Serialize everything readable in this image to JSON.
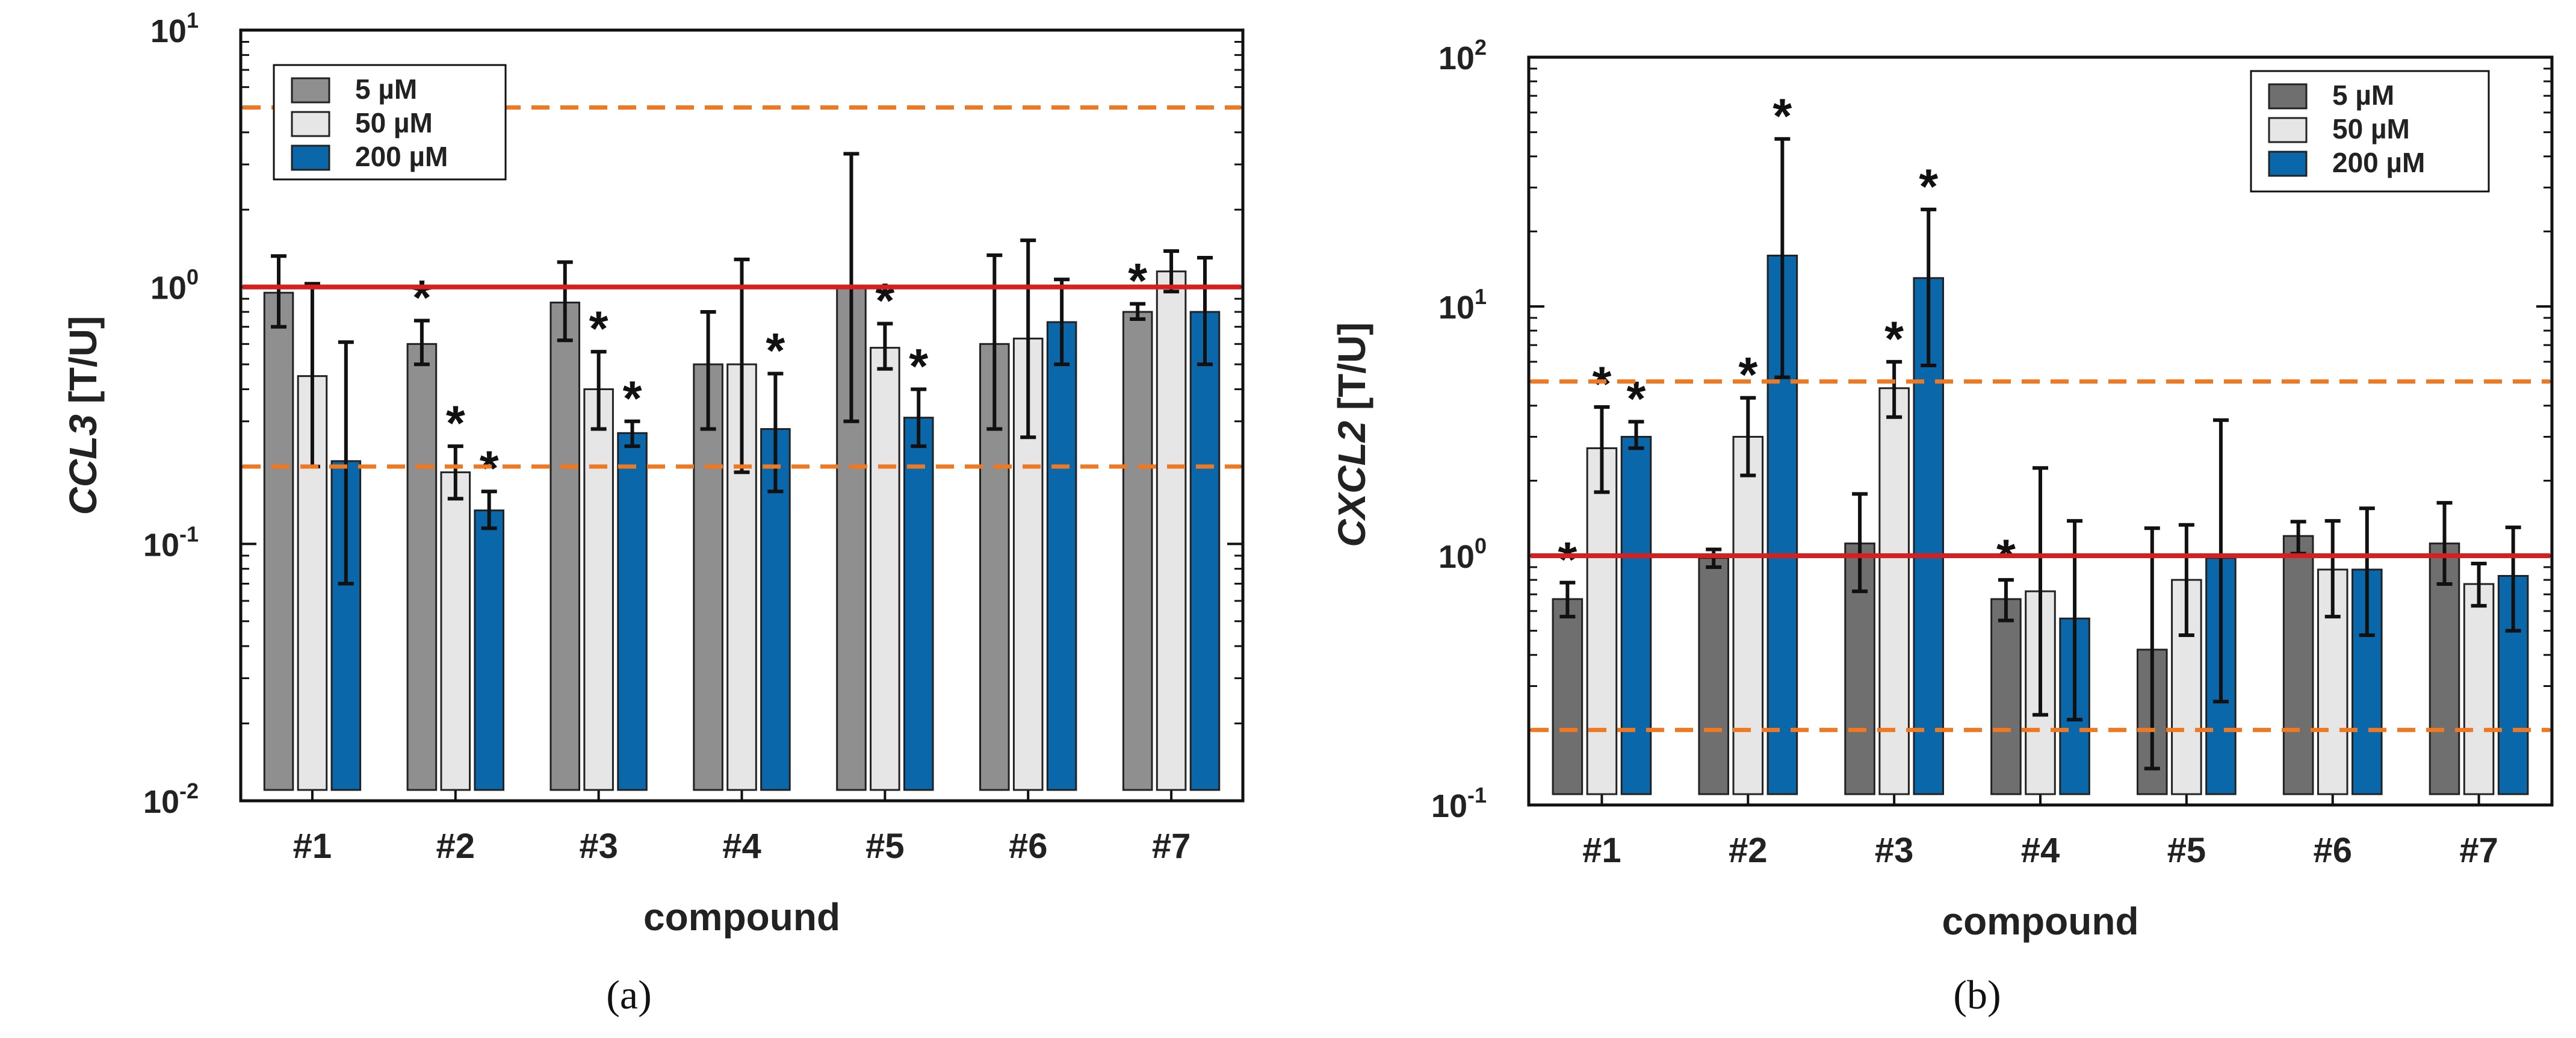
{
  "chart_data": [
    {
      "type": "bar",
      "panel_label": "(a)",
      "panel_letter": "a",
      "ylabel_gene": "CCL3",
      "ylabel_unit": "[T/U]",
      "xlabel": "compound",
      "yscale": "log",
      "ylim": [
        0.01,
        10
      ],
      "yticks": [
        {
          "value": 0.01,
          "base": "10",
          "exp": "-2"
        },
        {
          "value": 0.1,
          "base": "10",
          "exp": "-1"
        },
        {
          "value": 1,
          "base": "10",
          "exp": "0"
        },
        {
          "value": 10,
          "base": "10",
          "exp": "1"
        }
      ],
      "categories": [
        "#1",
        "#2",
        "#3",
        "#4",
        "#5",
        "#6",
        "#7"
      ],
      "legend_position": "top-left",
      "series": [
        {
          "name": "5 µM",
          "color": "#8f8f8f",
          "values": [
            0.95,
            0.6,
            0.87,
            0.5,
            1.0,
            0.6,
            0.8
          ],
          "err_low": [
            0.7,
            0.5,
            0.62,
            0.28,
            0.3,
            0.28,
            0.75
          ],
          "err_high": [
            1.32,
            0.74,
            1.25,
            0.8,
            3.3,
            1.33,
            0.86
          ],
          "stars": [
            false,
            true,
            false,
            false,
            false,
            false,
            true
          ]
        },
        {
          "name": "50 µM",
          "color": "#e6e6e6",
          "values": [
            0.45,
            0.19,
            0.4,
            0.5,
            0.58,
            0.63,
            1.15
          ],
          "err_low": [
            0.2,
            0.15,
            0.28,
            0.19,
            0.48,
            0.26,
            0.96
          ],
          "err_high": [
            1.03,
            0.24,
            0.56,
            1.28,
            0.72,
            1.52,
            1.38
          ],
          "stars": [
            false,
            true,
            true,
            false,
            true,
            false,
            false
          ]
        },
        {
          "name": "200 µM",
          "color": "#0a68aa",
          "values": [
            0.21,
            0.135,
            0.27,
            0.28,
            0.31,
            0.73,
            0.8
          ],
          "err_low": [
            0.07,
            0.115,
            0.24,
            0.16,
            0.24,
            0.5,
            0.5
          ],
          "err_high": [
            0.61,
            0.16,
            0.3,
            0.46,
            0.4,
            1.07,
            1.3
          ],
          "stars": [
            false,
            true,
            true,
            true,
            true,
            false,
            false
          ]
        }
      ],
      "reference_lines": [
        {
          "value": 1,
          "style": "solid",
          "color": "#d62020"
        },
        {
          "value": 5,
          "style": "dashed",
          "color": "#f07820"
        },
        {
          "value": 0.2,
          "style": "dashed",
          "color": "#f07820"
        }
      ]
    },
    {
      "type": "bar",
      "panel_label": "(b)",
      "panel_letter": "b",
      "ylabel_gene": "CXCL2",
      "ylabel_unit": "[T/U]",
      "xlabel": "compound",
      "yscale": "log",
      "ylim": [
        0.1,
        100
      ],
      "yticks": [
        {
          "value": 0.1,
          "base": "10",
          "exp": "-1"
        },
        {
          "value": 1,
          "base": "10",
          "exp": "0"
        },
        {
          "value": 10,
          "base": "10",
          "exp": "1"
        },
        {
          "value": 100,
          "base": "10",
          "exp": "2"
        }
      ],
      "categories": [
        "#1",
        "#2",
        "#3",
        "#4",
        "#5",
        "#6",
        "#7"
      ],
      "legend_position": "top-right",
      "series": [
        {
          "name": "5 µM",
          "color": "#6f6f6f",
          "values": [
            0.67,
            0.98,
            1.12,
            0.67,
            0.42,
            1.2,
            1.12
          ],
          "err_low": [
            0.57,
            0.9,
            0.72,
            0.55,
            0.14,
            1.02,
            0.77
          ],
          "err_high": [
            0.78,
            1.06,
            1.77,
            0.8,
            1.29,
            1.37,
            1.63
          ],
          "stars": [
            true,
            false,
            false,
            true,
            false,
            false,
            false
          ]
        },
        {
          "name": "50 µM",
          "color": "#e6e6e6",
          "values": [
            2.7,
            3.0,
            4.7,
            0.72,
            0.8,
            0.88,
            0.77
          ],
          "err_low": [
            1.8,
            2.1,
            3.6,
            0.23,
            0.48,
            0.57,
            0.63
          ],
          "err_high": [
            3.95,
            4.3,
            6.0,
            2.25,
            1.33,
            1.38,
            0.93
          ],
          "stars": [
            true,
            true,
            true,
            false,
            false,
            false,
            false
          ]
        },
        {
          "name": "200 µM",
          "color": "#0a68aa",
          "values": [
            3.0,
            16.0,
            13.0,
            0.56,
            0.98,
            0.88,
            0.83
          ],
          "err_low": [
            2.7,
            5.2,
            5.8,
            0.22,
            0.26,
            0.48,
            0.5
          ],
          "err_high": [
            3.45,
            47.0,
            24.5,
            1.38,
            3.5,
            1.55,
            1.3
          ],
          "stars": [
            true,
            true,
            true,
            false,
            false,
            false,
            false
          ]
        }
      ],
      "reference_lines": [
        {
          "value": 1,
          "style": "solid",
          "color": "#d62020"
        },
        {
          "value": 5,
          "style": "dashed",
          "color": "#f07820"
        },
        {
          "value": 0.2,
          "style": "dashed",
          "color": "#f07820"
        }
      ]
    }
  ]
}
